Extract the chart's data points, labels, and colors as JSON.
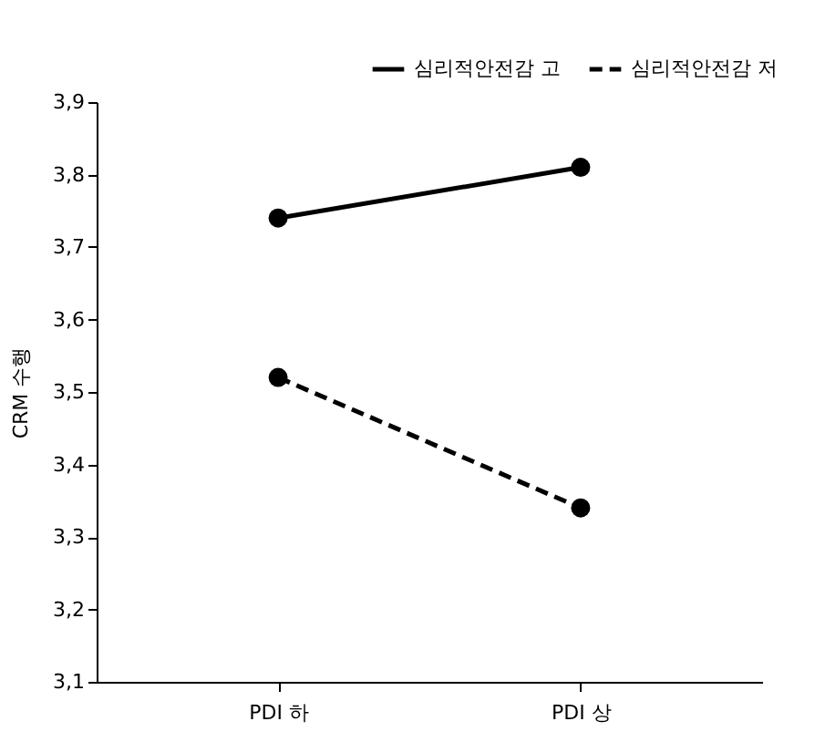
{
  "chart_data": {
    "type": "line",
    "ylabel": "CRM 수행",
    "categories": [
      "PDI 하",
      "PDI 상"
    ],
    "series": [
      {
        "name": "심리적안전감 고",
        "color": "#000000",
        "values": [
          3.74,
          3.81
        ],
        "line_style": "solid"
      },
      {
        "name": "심리적안전감 저",
        "color": "#000000",
        "values": [
          3.52,
          3.34
        ],
        "line_style": "dashed"
      }
    ],
    "ylim": [
      3.1,
      3.9
    ],
    "yticks": [
      {
        "value": 3.1,
        "label": "3,1"
      },
      {
        "value": 3.2,
        "label": "3,2"
      },
      {
        "value": 3.3,
        "label": "3,3"
      },
      {
        "value": 3.4,
        "label": "3,4"
      },
      {
        "value": 3.5,
        "label": "3,5"
      },
      {
        "value": 3.6,
        "label": "3,6"
      },
      {
        "value": 3.7,
        "label": "3,7"
      },
      {
        "value": 3.8,
        "label": "3,8"
      },
      {
        "value": 3.9,
        "label": "3,9"
      }
    ],
    "grid": false,
    "legend": "top right",
    "marker": "circle"
  }
}
